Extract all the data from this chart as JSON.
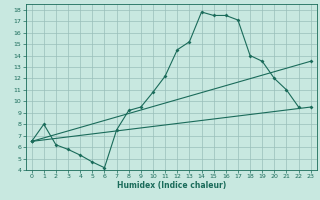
{
  "xlabel": "Humidex (Indice chaleur)",
  "bg_color": "#c8e8e0",
  "grid_color": "#9abfba",
  "line_color": "#1a6b5a",
  "xlim": [
    -0.5,
    23.5
  ],
  "ylim": [
    4,
    18.5
  ],
  "xticks": [
    0,
    1,
    2,
    3,
    4,
    5,
    6,
    7,
    8,
    9,
    10,
    11,
    12,
    13,
    14,
    15,
    16,
    17,
    18,
    19,
    20,
    21,
    22,
    23
  ],
  "yticks": [
    4,
    5,
    6,
    7,
    8,
    9,
    10,
    11,
    12,
    13,
    14,
    15,
    16,
    17,
    18
  ],
  "line1_x": [
    0,
    1,
    2,
    3,
    4,
    5,
    6,
    7,
    8,
    9,
    10,
    11,
    12,
    13,
    14,
    15,
    16,
    17,
    18,
    19,
    20,
    21,
    22
  ],
  "line1_y": [
    6.5,
    8.0,
    6.2,
    5.8,
    5.3,
    4.7,
    4.2,
    7.5,
    9.2,
    9.5,
    10.8,
    12.2,
    14.5,
    15.2,
    17.8,
    17.5,
    17.5,
    17.1,
    14.0,
    13.5,
    12.0,
    11.0,
    9.5
  ],
  "line2_x": [
    0,
    23
  ],
  "line2_y": [
    6.5,
    9.5
  ],
  "line3_x": [
    0,
    23
  ],
  "line3_y": [
    6.5,
    13.5
  ]
}
